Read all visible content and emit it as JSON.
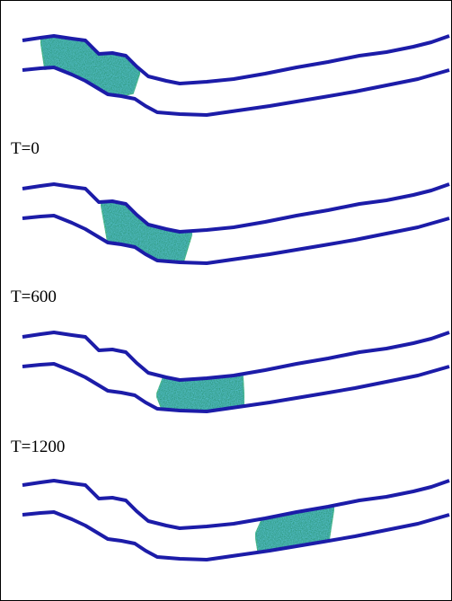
{
  "labels": [
    "T=0",
    "T=600",
    "T=1200"
  ]
}
